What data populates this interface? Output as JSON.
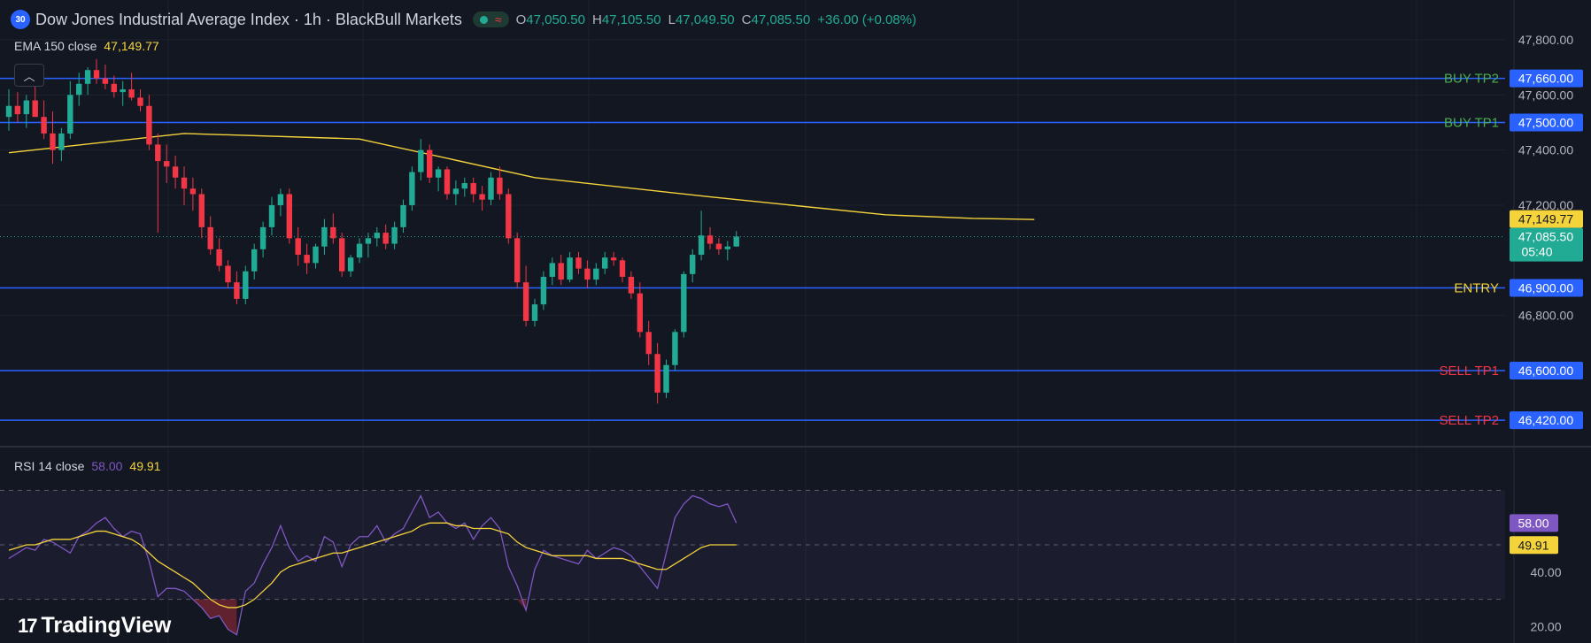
{
  "header": {
    "symbol_badge": "30",
    "title": "Dow Jones Industrial Average Index · 1h · BlackBull Markets",
    "ohlc": [
      {
        "key": "O",
        "value": "47,050.50"
      },
      {
        "key": "H",
        "value": "47,105.50"
      },
      {
        "key": "L",
        "value": "47,049.50"
      },
      {
        "key": "C",
        "value": "47,085.50"
      }
    ],
    "change": "+36.00 (+0.08%)"
  },
  "ema": {
    "label": "EMA 150 close",
    "value": "47,149.77",
    "color": "#f5d43b"
  },
  "rsi": {
    "label": "RSI 14 close",
    "value": "58.00",
    "ma_value": "49.91",
    "color": "#7e57c2",
    "ma_color": "#f5d43b"
  },
  "logo": {
    "text": "TradingView"
  },
  "colors": {
    "up": "#22ab94",
    "down": "#f23645",
    "line": "#2962ff",
    "ema": "#f5d43b",
    "rsi": "#7e57c2"
  },
  "chart_data": [
    {
      "type": "candlestick",
      "title": "Dow Jones Industrial Average Index · 1h · BlackBull Markets",
      "yticks": [
        "47,800.00",
        "47,600.00",
        "47,400.00",
        "47,200.00",
        "46,800.00"
      ],
      "ylim": [
        46340,
        47880
      ],
      "levels": [
        {
          "name": "BUY TP2",
          "value": 47660,
          "price_label": "47,660.00",
          "label_color": "#4caf50"
        },
        {
          "name": "BUY TP1",
          "value": 47500,
          "price_label": "47,500.00",
          "label_color": "#4caf50"
        },
        {
          "name": "ENTRY",
          "value": 46900,
          "price_label": "46,900.00",
          "label_color": "#f5d43b"
        },
        {
          "name": "SELL TP1",
          "value": 46600,
          "price_label": "46,600.00",
          "label_color": "#f23645"
        },
        {
          "name": "SELL TP2",
          "value": 46420,
          "price_label": "46,420.00",
          "label_color": "#f23645"
        }
      ],
      "current_price": {
        "value": 47085.5,
        "label": "47,085.50",
        "countdown": "05:40"
      },
      "ema_last": {
        "value": 47149.77,
        "label": "47,149.77"
      },
      "candles": [
        [
          47520,
          47620,
          47470,
          47560
        ],
        [
          47560,
          47610,
          47500,
          47530
        ],
        [
          47530,
          47600,
          47480,
          47580
        ],
        [
          47580,
          47640,
          47530,
          47520
        ],
        [
          47520,
          47580,
          47440,
          47460
        ],
        [
          47460,
          47540,
          47350,
          47400
        ],
        [
          47400,
          47480,
          47360,
          47460
        ],
        [
          47460,
          47650,
          47440,
          47600
        ],
        [
          47600,
          47680,
          47560,
          47640
        ],
        [
          47640,
          47700,
          47600,
          47690
        ],
        [
          47690,
          47730,
          47640,
          47660
        ],
        [
          47660,
          47710,
          47620,
          47640
        ],
        [
          47640,
          47670,
          47590,
          47610
        ],
        [
          47610,
          47650,
          47560,
          47620
        ],
        [
          47620,
          47680,
          47580,
          47590
        ],
        [
          47590,
          47620,
          47540,
          47560
        ],
        [
          47560,
          47600,
          47400,
          47420
        ],
        [
          47420,
          47460,
          47100,
          47360
        ],
        [
          47360,
          47420,
          47280,
          47340
        ],
        [
          47340,
          47380,
          47260,
          47300
        ],
        [
          47300,
          47340,
          47200,
          47260
        ],
        [
          47260,
          47300,
          47180,
          47240
        ],
        [
          47240,
          47260,
          47080,
          47120
        ],
        [
          47120,
          47160,
          47020,
          47040
        ],
        [
          47040,
          47080,
          46960,
          46980
        ],
        [
          46980,
          47000,
          46900,
          46920
        ],
        [
          46920,
          46960,
          46840,
          46860
        ],
        [
          46860,
          46980,
          46840,
          46960
        ],
        [
          46960,
          47060,
          46930,
          47040
        ],
        [
          47040,
          47140,
          47010,
          47120
        ],
        [
          47120,
          47230,
          47090,
          47200
        ],
        [
          47200,
          47260,
          47160,
          47240
        ],
        [
          47240,
          47260,
          47060,
          47080
        ],
        [
          47080,
          47120,
          46980,
          47020
        ],
        [
          47020,
          47060,
          46950,
          46990
        ],
        [
          46990,
          47060,
          46970,
          47050
        ],
        [
          47050,
          47150,
          47020,
          47120
        ],
        [
          47120,
          47170,
          47060,
          47080
        ],
        [
          47080,
          47100,
          46940,
          46960
        ],
        [
          46960,
          47020,
          46940,
          47010
        ],
        [
          47010,
          47080,
          46990,
          47060
        ],
        [
          47060,
          47100,
          47010,
          47080
        ],
        [
          47080,
          47120,
          47050,
          47100
        ],
        [
          47100,
          47130,
          47040,
          47060
        ],
        [
          47060,
          47140,
          47040,
          47120
        ],
        [
          47120,
          47220,
          47100,
          47200
        ],
        [
          47200,
          47340,
          47180,
          47320
        ],
        [
          47320,
          47440,
          47290,
          47400
        ],
        [
          47400,
          47420,
          47280,
          47300
        ],
        [
          47300,
          47340,
          47250,
          47330
        ],
        [
          47330,
          47340,
          47220,
          47240
        ],
        [
          47240,
          47290,
          47200,
          47260
        ],
        [
          47260,
          47300,
          47230,
          47280
        ],
        [
          47280,
          47300,
          47210,
          47240
        ],
        [
          47240,
          47270,
          47180,
          47220
        ],
        [
          47220,
          47320,
          47200,
          47300
        ],
        [
          47300,
          47340,
          47220,
          47240
        ],
        [
          47240,
          47260,
          47060,
          47080
        ],
        [
          47080,
          47100,
          46900,
          46920
        ],
        [
          46920,
          46980,
          46760,
          46780
        ],
        [
          46780,
          46860,
          46760,
          46840
        ],
        [
          46840,
          46960,
          46820,
          46940
        ],
        [
          46940,
          47010,
          46910,
          46990
        ],
        [
          46990,
          47020,
          46910,
          46930
        ],
        [
          46930,
          47030,
          46920,
          47010
        ],
        [
          47010,
          47030,
          46950,
          46970
        ],
        [
          46970,
          47000,
          46900,
          46930
        ],
        [
          46930,
          46990,
          46910,
          46970
        ],
        [
          46970,
          47030,
          46950,
          47010
        ],
        [
          47010,
          47030,
          46980,
          47000
        ],
        [
          47000,
          47010,
          46920,
          46940
        ],
        [
          46940,
          46960,
          46860,
          46880
        ],
        [
          46880,
          46920,
          46720,
          46740
        ],
        [
          46740,
          46780,
          46620,
          46660
        ],
        [
          46660,
          46700,
          46480,
          46520
        ],
        [
          46520,
          46640,
          46500,
          46620
        ],
        [
          46620,
          46750,
          46600,
          46740
        ],
        [
          46740,
          46960,
          46720,
          46950
        ],
        [
          46950,
          47040,
          46920,
          47020
        ],
        [
          47020,
          47180,
          47000,
          47090
        ],
        [
          47090,
          47120,
          47040,
          47060
        ],
        [
          47060,
          47080,
          47020,
          47040
        ],
        [
          47040,
          47070,
          47000,
          47050
        ],
        [
          47050,
          47106,
          47049,
          47086
        ]
      ],
      "ema": [
        [
          0,
          47390
        ],
        [
          20,
          47460
        ],
        [
          40,
          47440
        ],
        [
          60,
          47300
        ],
        [
          80,
          47230
        ],
        [
          100,
          47165
        ],
        [
          110,
          47152
        ],
        [
          117,
          47148
        ]
      ]
    },
    {
      "type": "line",
      "title": "RSI 14 close",
      "yticks": [
        "40.00",
        "20.00"
      ],
      "ylim": [
        14,
        86
      ],
      "bands": [
        70,
        50,
        30
      ],
      "series": [
        {
          "values": [
            45,
            47,
            49,
            48,
            52,
            51,
            49,
            47,
            53,
            55,
            58,
            60,
            56,
            53,
            55,
            54,
            44,
            31,
            34,
            34,
            33,
            30,
            27,
            23,
            24,
            19,
            17,
            33,
            36,
            43,
            49,
            57,
            49,
            44,
            46,
            44,
            53,
            51,
            42,
            50,
            53,
            53,
            57,
            51,
            54,
            56,
            62,
            68,
            60,
            62,
            58,
            56,
            58,
            52,
            57,
            60,
            56,
            42,
            35,
            26,
            41,
            48,
            46,
            45,
            44,
            43,
            48,
            45,
            47,
            49,
            48,
            46,
            42,
            38,
            34,
            47,
            60,
            65,
            68,
            67,
            65,
            64,
            65,
            58
          ]
        },
        {
          "values": [
            48,
            49,
            50,
            50,
            51,
            52,
            52,
            52,
            53,
            54,
            55,
            55,
            54,
            53,
            52,
            50,
            47,
            44,
            42,
            40,
            38,
            36,
            33,
            30,
            28,
            27,
            27,
            28,
            30,
            33,
            36,
            40,
            42,
            43,
            44,
            45,
            46,
            47,
            47,
            48,
            49,
            50,
            51,
            52,
            53,
            54,
            55,
            57,
            58,
            58,
            58,
            57,
            57,
            56,
            56,
            56,
            55,
            54,
            51,
            49,
            48,
            47,
            46,
            46,
            46,
            46,
            46,
            45,
            45,
            45,
            45,
            44,
            43,
            42,
            41,
            41,
            43,
            45,
            47,
            49,
            50,
            50,
            50,
            50
          ]
        }
      ]
    }
  ]
}
